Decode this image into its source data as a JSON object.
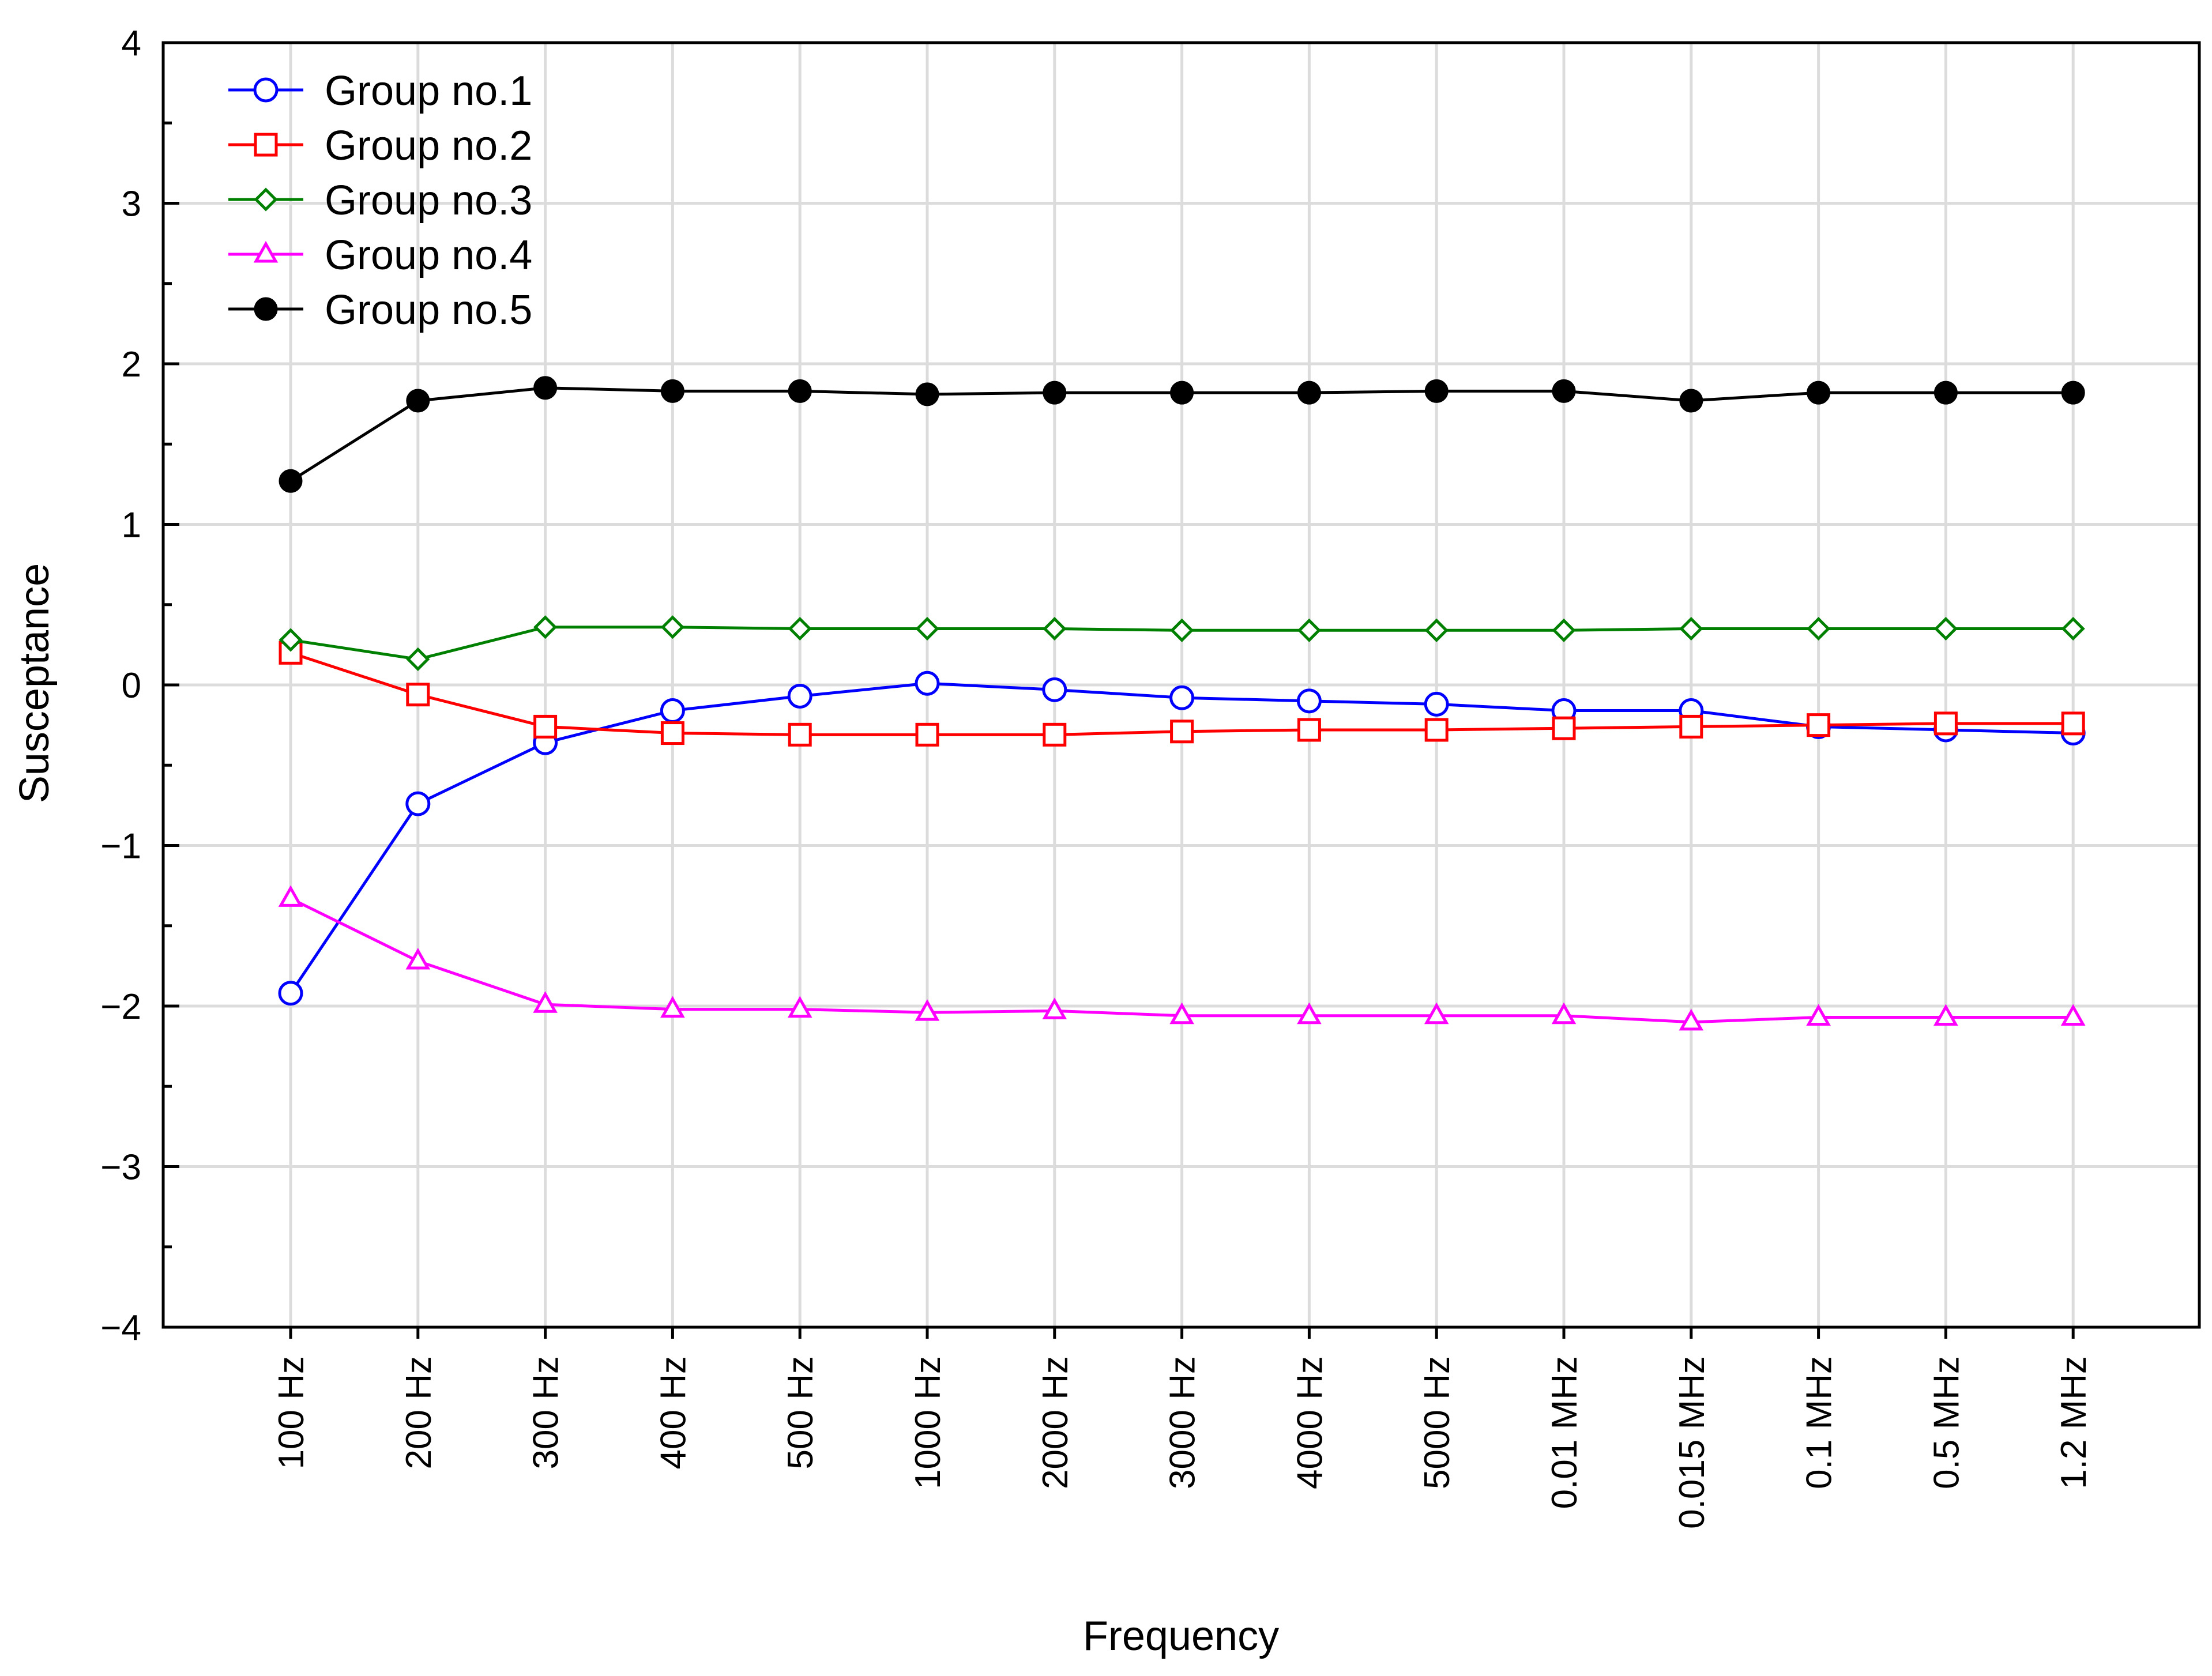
{
  "chart_data": {
    "type": "line",
    "title": "",
    "xlabel": "Frequency",
    "ylabel": "Susceptance",
    "ylim": [
      -4,
      4
    ],
    "yticks": [
      "−4",
      "−3",
      "−2",
      "−1",
      "0",
      "1",
      "2",
      "3",
      "4"
    ],
    "grid": true,
    "legend_position": "top-left",
    "categories": [
      "100 Hz",
      "200 Hz",
      "300 Hz",
      "400 Hz",
      "500 Hz",
      "1000 Hz",
      "2000 Hz",
      "3000 Hz",
      "4000 Hz",
      "5000 Hz",
      "0.01 MHz",
      "0.015 MHz",
      "0.1 MHz",
      "0.5 MHz",
      "1.2 MHz"
    ],
    "series": [
      {
        "name": "Group no.1",
        "color": "#0000ff",
        "marker": "circle-open",
        "values": [
          -1.92,
          -0.74,
          -0.36,
          -0.16,
          -0.07,
          0.01,
          -0.03,
          -0.08,
          -0.1,
          -0.12,
          -0.16,
          -0.16,
          -0.26,
          -0.28,
          -0.3
        ]
      },
      {
        "name": "Group no.2",
        "color": "#ff0000",
        "marker": "square-open",
        "values": [
          0.2,
          -0.06,
          -0.26,
          -0.3,
          -0.31,
          -0.31,
          -0.31,
          -0.29,
          -0.28,
          -0.28,
          -0.27,
          -0.26,
          -0.25,
          -0.24,
          -0.24
        ]
      },
      {
        "name": "Group no.3",
        "color": "#008000",
        "marker": "diamond-open",
        "values": [
          0.28,
          0.16,
          0.36,
          0.36,
          0.35,
          0.35,
          0.35,
          0.34,
          0.34,
          0.34,
          0.34,
          0.35,
          0.35,
          0.35,
          0.35
        ]
      },
      {
        "name": "Group no.4",
        "color": "#ff00ff",
        "marker": "triangle-open",
        "values": [
          -1.33,
          -1.72,
          -1.99,
          -2.02,
          -2.02,
          -2.04,
          -2.03,
          -2.06,
          -2.06,
          -2.06,
          -2.06,
          -2.1,
          -2.07,
          -2.07,
          -2.07
        ]
      },
      {
        "name": "Group no.5",
        "color": "#000000",
        "marker": "circle-filled",
        "values": [
          1.27,
          1.77,
          1.85,
          1.83,
          1.83,
          1.81,
          1.82,
          1.82,
          1.82,
          1.83,
          1.83,
          1.77,
          1.82,
          1.82,
          1.82
        ]
      }
    ]
  }
}
